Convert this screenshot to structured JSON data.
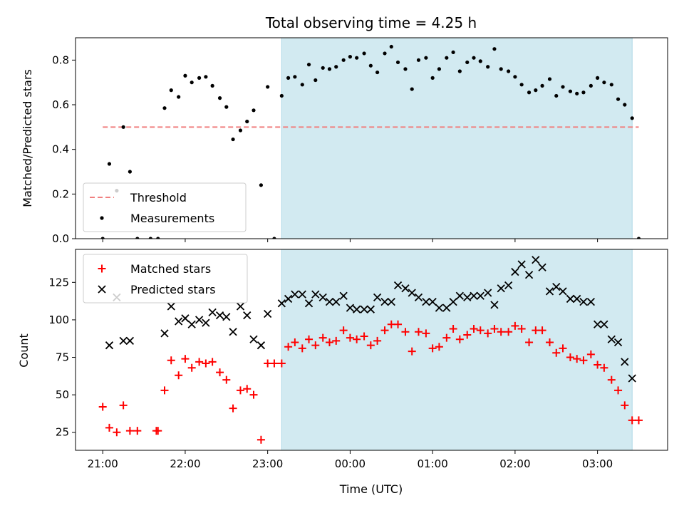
{
  "chart_data": {
    "title": "Total observing time = 4.25 h",
    "xlabel": "Time (UTC)",
    "x_unit": "hours after 21:00 UTC",
    "x_ticks": [
      {
        "value": 0,
        "label": "21:00"
      },
      {
        "value": 1,
        "label": "22:00"
      },
      {
        "value": 2,
        "label": "23:00"
      },
      {
        "value": 3,
        "label": "00:00"
      },
      {
        "value": 4,
        "label": "01:00"
      },
      {
        "value": 5,
        "label": "02:00"
      },
      {
        "value": 6,
        "label": "03:00"
      }
    ],
    "xlim": [
      -0.33,
      6.85
    ],
    "shaded_interval": {
      "from": 2.17,
      "to": 6.42,
      "color": "#add8e6"
    },
    "panels": [
      {
        "type": "scatter",
        "ylabel": "Matched/Predicted stars",
        "ylim": [
          0,
          0.9
        ],
        "y_ticks": [
          0.0,
          0.2,
          0.4,
          0.6,
          0.8
        ],
        "legend_position": "bottom-left",
        "threshold": {
          "name": "Threshold",
          "value": 0.5,
          "x_from": 0,
          "x_to": 6.5,
          "color": "#f08080"
        },
        "series": [
          {
            "name": "Measurements",
            "marker": "dot",
            "color": "#000000",
            "points": [
              [
                0.0,
                0.0
              ],
              [
                0.08,
                0.335
              ],
              [
                0.17,
                0.215
              ],
              [
                0.25,
                0.5
              ],
              [
                0.33,
                0.3
              ],
              [
                0.42,
                0.0
              ],
              [
                0.58,
                0.0
              ],
              [
                0.67,
                0.0
              ],
              [
                0.75,
                0.585
              ],
              [
                0.83,
                0.665
              ],
              [
                0.92,
                0.635
              ],
              [
                1.0,
                0.73
              ],
              [
                1.08,
                0.7
              ],
              [
                1.17,
                0.72
              ],
              [
                1.25,
                0.725
              ],
              [
                1.33,
                0.685
              ],
              [
                1.42,
                0.63
              ],
              [
                1.5,
                0.59
              ],
              [
                1.58,
                0.445
              ],
              [
                1.67,
                0.485
              ],
              [
                1.75,
                0.525
              ],
              [
                1.83,
                0.575
              ],
              [
                1.92,
                0.24
              ],
              [
                2.0,
                0.68
              ],
              [
                2.08,
                0.0
              ],
              [
                2.17,
                0.64
              ],
              [
                2.25,
                0.72
              ],
              [
                2.33,
                0.725
              ],
              [
                2.42,
                0.69
              ],
              [
                2.5,
                0.78
              ],
              [
                2.58,
                0.71
              ],
              [
                2.67,
                0.765
              ],
              [
                2.75,
                0.76
              ],
              [
                2.83,
                0.77
              ],
              [
                2.92,
                0.8
              ],
              [
                3.0,
                0.815
              ],
              [
                3.08,
                0.81
              ],
              [
                3.17,
                0.83
              ],
              [
                3.25,
                0.775
              ],
              [
                3.33,
                0.745
              ],
              [
                3.42,
                0.83
              ],
              [
                3.5,
                0.86
              ],
              [
                3.58,
                0.79
              ],
              [
                3.67,
                0.76
              ],
              [
                3.75,
                0.67
              ],
              [
                3.83,
                0.8
              ],
              [
                3.92,
                0.81
              ],
              [
                4.0,
                0.72
              ],
              [
                4.08,
                0.76
              ],
              [
                4.17,
                0.81
              ],
              [
                4.25,
                0.835
              ],
              [
                4.33,
                0.75
              ],
              [
                4.42,
                0.79
              ],
              [
                4.5,
                0.81
              ],
              [
                4.58,
                0.795
              ],
              [
                4.67,
                0.77
              ],
              [
                4.75,
                0.85
              ],
              [
                4.83,
                0.76
              ],
              [
                4.92,
                0.75
              ],
              [
                5.0,
                0.725
              ],
              [
                5.08,
                0.69
              ],
              [
                5.17,
                0.655
              ],
              [
                5.25,
                0.665
              ],
              [
                5.33,
                0.685
              ],
              [
                5.42,
                0.715
              ],
              [
                5.5,
                0.64
              ],
              [
                5.58,
                0.68
              ],
              [
                5.67,
                0.66
              ],
              [
                5.75,
                0.65
              ],
              [
                5.83,
                0.655
              ],
              [
                5.92,
                0.685
              ],
              [
                6.0,
                0.72
              ],
              [
                6.08,
                0.7
              ],
              [
                6.17,
                0.69
              ],
              [
                6.25,
                0.625
              ],
              [
                6.33,
                0.6
              ],
              [
                6.42,
                0.54
              ],
              [
                6.5,
                0.0
              ]
            ]
          }
        ]
      },
      {
        "type": "scatter",
        "ylabel": "Count",
        "ylim": [
          13,
          147
        ],
        "y_ticks": [
          25,
          50,
          75,
          100,
          125
        ],
        "legend_position": "top-left",
        "series": [
          {
            "name": "Matched stars",
            "marker": "plus",
            "color": "#ff0000",
            "points": [
              [
                0.0,
                42
              ],
              [
                0.08,
                28
              ],
              [
                0.17,
                25
              ],
              [
                0.25,
                43
              ],
              [
                0.33,
                26
              ],
              [
                0.42,
                26
              ],
              [
                0.65,
                26
              ],
              [
                0.67,
                26
              ],
              [
                0.75,
                53
              ],
              [
                0.83,
                73
              ],
              [
                0.92,
                63
              ],
              [
                1.0,
                74
              ],
              [
                1.08,
                68
              ],
              [
                1.17,
                72
              ],
              [
                1.25,
                71
              ],
              [
                1.33,
                72
              ],
              [
                1.42,
                65
              ],
              [
                1.5,
                60
              ],
              [
                1.58,
                41
              ],
              [
                1.67,
                53
              ],
              [
                1.75,
                54
              ],
              [
                1.83,
                50
              ],
              [
                1.92,
                20
              ],
              [
                2.0,
                71
              ],
              [
                2.08,
                71
              ],
              [
                2.17,
                71
              ],
              [
                2.25,
                82
              ],
              [
                2.33,
                85
              ],
              [
                2.42,
                81
              ],
              [
                2.5,
                87
              ],
              [
                2.58,
                83
              ],
              [
                2.67,
                88
              ],
              [
                2.75,
                85
              ],
              [
                2.83,
                86
              ],
              [
                2.92,
                93
              ],
              [
                3.0,
                88
              ],
              [
                3.08,
                87
              ],
              [
                3.17,
                89
              ],
              [
                3.25,
                83
              ],
              [
                3.33,
                86
              ],
              [
                3.42,
                93
              ],
              [
                3.5,
                97
              ],
              [
                3.58,
                97
              ],
              [
                3.67,
                92
              ],
              [
                3.75,
                79
              ],
              [
                3.83,
                92
              ],
              [
                3.92,
                91
              ],
              [
                4.0,
                81
              ],
              [
                4.08,
                82
              ],
              [
                4.17,
                88
              ],
              [
                4.25,
                94
              ],
              [
                4.33,
                87
              ],
              [
                4.42,
                90
              ],
              [
                4.5,
                94
              ],
              [
                4.58,
                93
              ],
              [
                4.67,
                91
              ],
              [
                4.75,
                94
              ],
              [
                4.83,
                92
              ],
              [
                4.92,
                92
              ],
              [
                5.0,
                96
              ],
              [
                5.08,
                94
              ],
              [
                5.17,
                85
              ],
              [
                5.25,
                93
              ],
              [
                5.33,
                93
              ],
              [
                5.42,
                85
              ],
              [
                5.5,
                78
              ],
              [
                5.58,
                81
              ],
              [
                5.67,
                75
              ],
              [
                5.75,
                74
              ],
              [
                5.83,
                73
              ],
              [
                5.92,
                77
              ],
              [
                6.0,
                70
              ],
              [
                6.08,
                68
              ],
              [
                6.17,
                60
              ],
              [
                6.25,
                53
              ],
              [
                6.33,
                43
              ],
              [
                6.42,
                33
              ],
              [
                6.5,
                33
              ]
            ]
          },
          {
            "name": "Predicted stars",
            "marker": "x",
            "color": "#000000",
            "points": [
              [
                0.08,
                83
              ],
              [
                0.17,
                115
              ],
              [
                0.25,
                86
              ],
              [
                0.33,
                86
              ],
              [
                0.75,
                91
              ],
              [
                0.83,
                109
              ],
              [
                0.92,
                99
              ],
              [
                1.0,
                101
              ],
              [
                1.08,
                97
              ],
              [
                1.17,
                100
              ],
              [
                1.25,
                98
              ],
              [
                1.33,
                105
              ],
              [
                1.42,
                103
              ],
              [
                1.5,
                102
              ],
              [
                1.58,
                92
              ],
              [
                1.67,
                109
              ],
              [
                1.75,
                103
              ],
              [
                1.83,
                87
              ],
              [
                1.92,
                83
              ],
              [
                2.0,
                104
              ],
              [
                2.17,
                111
              ],
              [
                2.25,
                114
              ],
              [
                2.33,
                117
              ],
              [
                2.42,
                117
              ],
              [
                2.5,
                111
              ],
              [
                2.58,
                117
              ],
              [
                2.67,
                115
              ],
              [
                2.75,
                112
              ],
              [
                2.83,
                112
              ],
              [
                2.92,
                116
              ],
              [
                3.0,
                108
              ],
              [
                3.08,
                107
              ],
              [
                3.17,
                107
              ],
              [
                3.25,
                107
              ],
              [
                3.33,
                115
              ],
              [
                3.42,
                112
              ],
              [
                3.5,
                112
              ],
              [
                3.58,
                123
              ],
              [
                3.67,
                121
              ],
              [
                3.75,
                118
              ],
              [
                3.83,
                115
              ],
              [
                3.92,
                112
              ],
              [
                4.0,
                112
              ],
              [
                4.08,
                108
              ],
              [
                4.17,
                108
              ],
              [
                4.25,
                112
              ],
              [
                4.33,
                116
              ],
              [
                4.42,
                115
              ],
              [
                4.5,
                116
              ],
              [
                4.58,
                116
              ],
              [
                4.67,
                118
              ],
              [
                4.75,
                110
              ],
              [
                4.83,
                121
              ],
              [
                4.92,
                123
              ],
              [
                5.0,
                132
              ],
              [
                5.08,
                137
              ],
              [
                5.17,
                130
              ],
              [
                5.25,
                140
              ],
              [
                5.33,
                135
              ],
              [
                5.42,
                119
              ],
              [
                5.5,
                122
              ],
              [
                5.58,
                119
              ],
              [
                5.67,
                114
              ],
              [
                5.75,
                114
              ],
              [
                5.83,
                112
              ],
              [
                5.92,
                112
              ],
              [
                6.0,
                97
              ],
              [
                6.08,
                97
              ],
              [
                6.17,
                87
              ],
              [
                6.25,
                85
              ],
              [
                6.33,
                72
              ],
              [
                6.42,
                61
              ]
            ]
          }
        ]
      }
    ]
  }
}
